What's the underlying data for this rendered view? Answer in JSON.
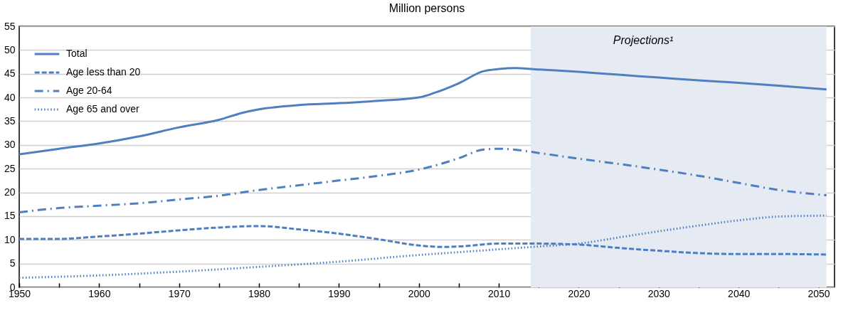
{
  "chart_data": {
    "type": "line",
    "title": "Million persons",
    "xlim": [
      1950,
      2052
    ],
    "xticks": [
      1950,
      {
        "value": 1955,
        "label": null
      },
      1960,
      {
        "value": 1965,
        "label": null
      },
      1970,
      {
        "value": 1975,
        "label": null
      },
      1980,
      {
        "value": 1985,
        "label": null
      },
      1990,
      {
        "value": 1995,
        "label": null
      },
      2000,
      {
        "value": 2005,
        "label": null
      },
      2010,
      {
        "value": 2015,
        "label": null
      },
      2020,
      {
        "value": 2025,
        "label": null
      },
      2030,
      {
        "value": 2035,
        "label": null
      },
      2040,
      {
        "value": 2045,
        "label": null
      },
      2050
    ],
    "ylim": [
      0,
      55
    ],
    "yticks": [
      0,
      5,
      10,
      15,
      20,
      25,
      30,
      35,
      40,
      45,
      50,
      55
    ],
    "grid": "y",
    "legend": "top left",
    "bands": [
      {
        "axis": "x",
        "from": 2014,
        "to": 2051,
        "label": "Projections¹",
        "color": "#e6eaf2"
      }
    ],
    "series": [
      {
        "name": "Total",
        "color": "#4f7fc0",
        "line_style": "solid",
        "x": [
          1950,
          1955,
          1960,
          1965,
          1970,
          1975,
          1978,
          1980,
          1985,
          1990,
          1995,
          2000,
          2002,
          2005,
          2008,
          2010,
          2012,
          2015,
          2020,
          2025,
          2030,
          2035,
          2040,
          2045,
          2051
        ],
        "values": [
          28,
          29.2,
          30.3,
          31.8,
          33.7,
          35.3,
          36.8,
          37.5,
          38.4,
          38.8,
          39.3,
          40,
          41,
          43,
          45.5,
          46,
          46.2,
          45.9,
          45.4,
          44.8,
          44.2,
          43.6,
          43.1,
          42.5,
          41.7
        ]
      },
      {
        "name": "Age less than 20",
        "color": "#4f7fc0",
        "line_style": "dashed",
        "x": [
          1950,
          1955,
          1960,
          1965,
          1970,
          1975,
          1980,
          1985,
          1990,
          1995,
          2000,
          2003,
          2005,
          2010,
          2015,
          2020,
          2025,
          2030,
          2035,
          2040,
          2045,
          2051
        ],
        "values": [
          10.2,
          10.2,
          10.7,
          11.3,
          12,
          12.6,
          12.9,
          12.2,
          11.3,
          10.1,
          8.8,
          8.5,
          8.6,
          9.2,
          9.2,
          9,
          8.3,
          7.7,
          7.2,
          7,
          7,
          6.9
        ]
      },
      {
        "name": "Age 20-64",
        "color": "#4f7fc0",
        "line_style": "dashdot",
        "x": [
          1950,
          1955,
          1960,
          1965,
          1970,
          1975,
          1980,
          1985,
          1990,
          1995,
          2000,
          2005,
          2008,
          2010,
          2012,
          2015,
          2020,
          2025,
          2030,
          2035,
          2040,
          2045,
          2051
        ],
        "values": [
          15.8,
          16.7,
          17.2,
          17.7,
          18.5,
          19.3,
          20.5,
          21.5,
          22.5,
          23.5,
          24.8,
          27.2,
          29,
          29.2,
          29,
          28.3,
          27.1,
          26,
          24.8,
          23.5,
          22,
          20.5,
          19.4
        ]
      },
      {
        "name": "Age 65 and over",
        "color": "#4f7fc0",
        "line_style": "dotted",
        "x": [
          1950,
          1960,
          1970,
          1980,
          1990,
          2000,
          2005,
          2010,
          2015,
          2020,
          2025,
          2030,
          2035,
          2040,
          2045,
          2051
        ],
        "values": [
          2,
          2.5,
          3.3,
          4.3,
          5.4,
          6.8,
          7.4,
          8,
          8.6,
          9.2,
          10.5,
          11.8,
          13,
          14.1,
          14.9,
          15.1
        ]
      }
    ]
  }
}
